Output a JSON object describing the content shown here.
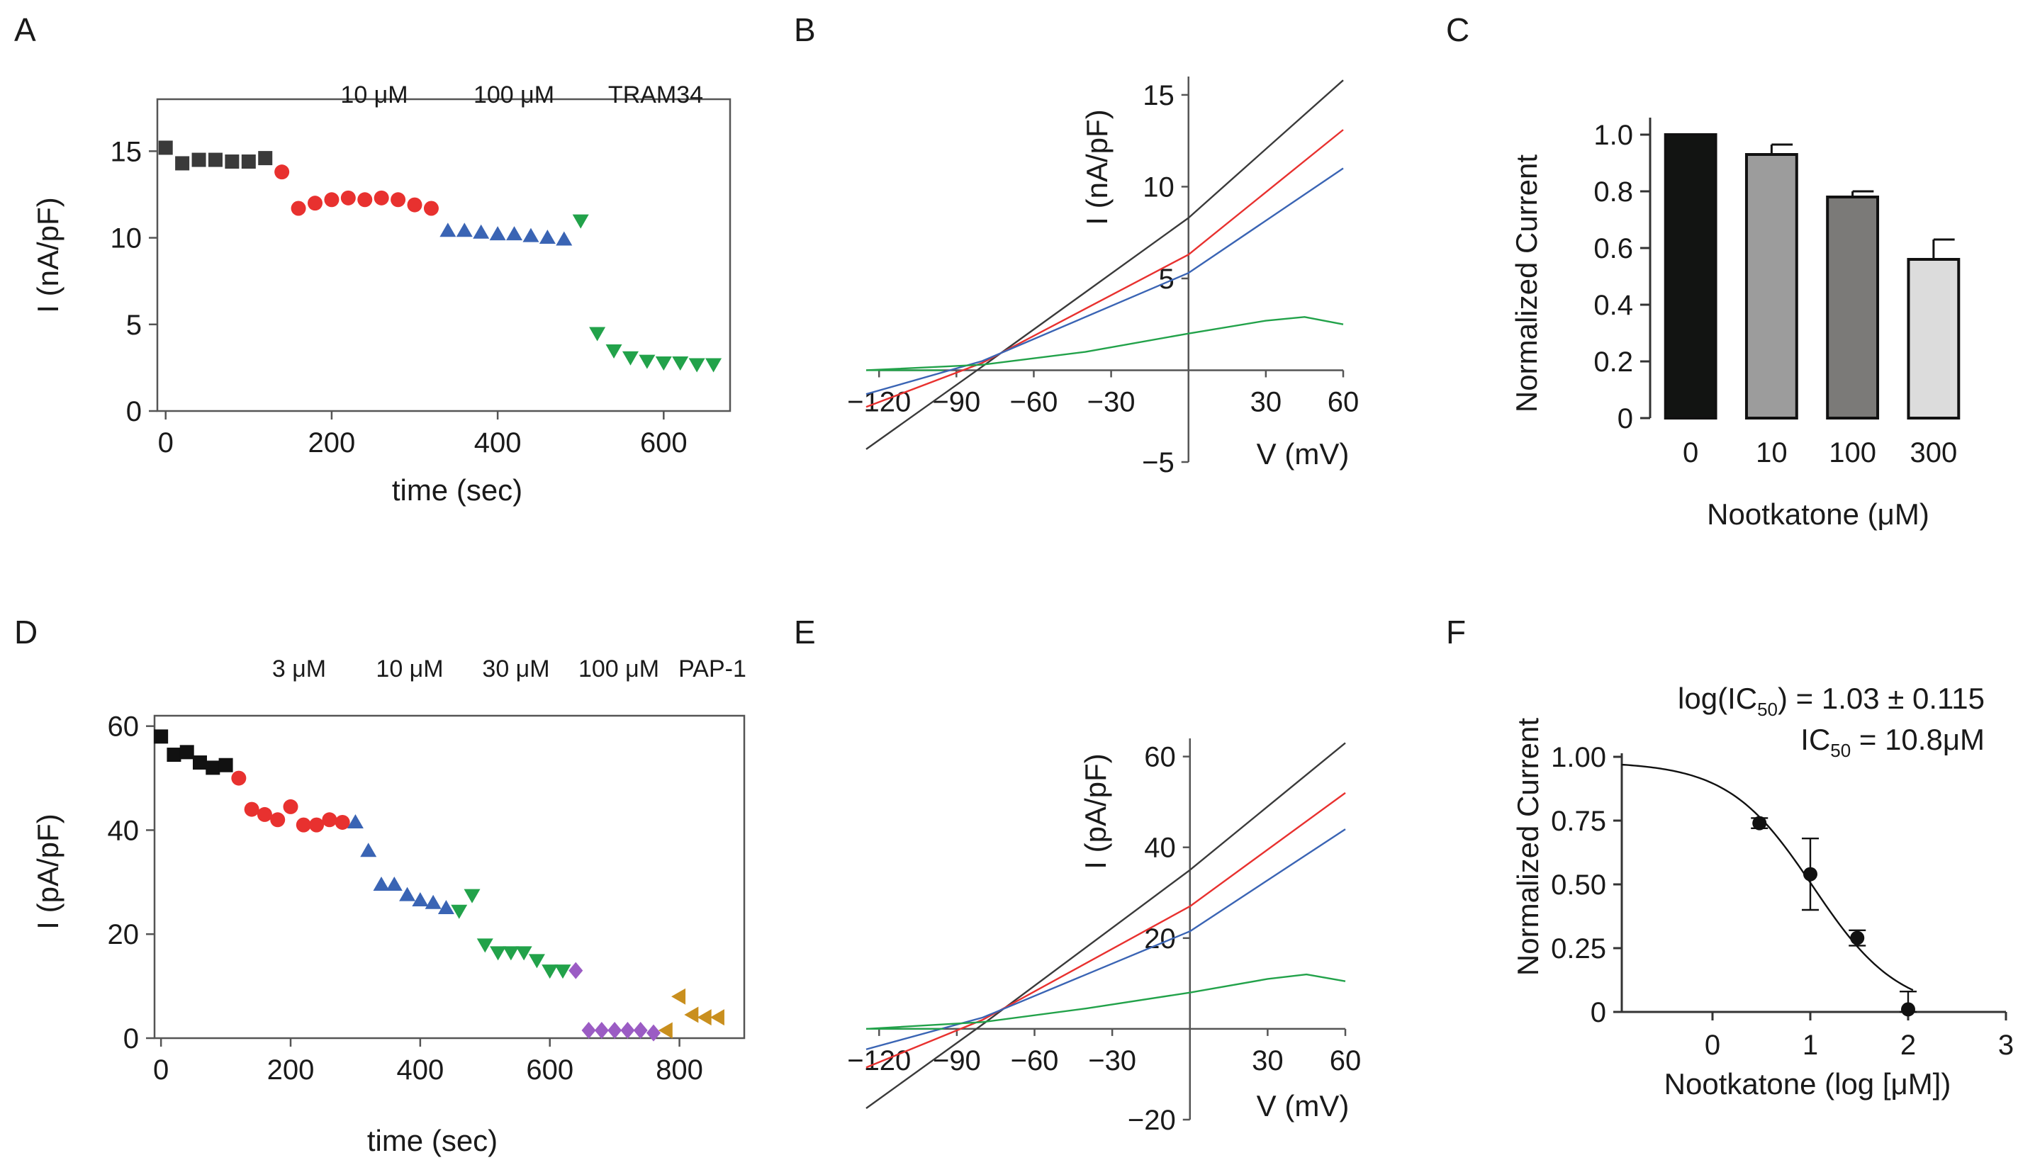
{
  "colors": {
    "control": "#3a3a3a",
    "red": "#e8312f",
    "blue": "#3a64b4",
    "green": "#22a24a",
    "purple": "#9b5cc4",
    "orange": "#d59a22",
    "label_red": "#e8312f",
    "label_blue": "#2b2b9a",
    "label_green": "#1f9e4a",
    "label_purple": "#7a2fa6",
    "label_orange": "#e39b2e"
  },
  "chart_data": [
    {
      "id": "A",
      "panel_label": "A",
      "type": "scatter",
      "xlabel": "time (sec)",
      "ylabel": "I (nA/pF)",
      "xlim": [
        -10,
        680
      ],
      "ylim": [
        0,
        18
      ],
      "xticks": [
        "0",
        "200",
        "400",
        "600"
      ],
      "xtick_values": [
        0,
        200,
        400,
        600
      ],
      "yticks": [
        "0",
        "5",
        "10",
        "15"
      ],
      "ytick_values": [
        0,
        5,
        10,
        15
      ],
      "conditions": [
        {
          "label": "10 μM",
          "color": "#e8312f"
        },
        {
          "label": "100 μM",
          "color": "#2b2b9a"
        },
        {
          "label": "TRAM34",
          "color": "#1f9e4a"
        }
      ],
      "series": [
        {
          "marker": "square",
          "color": "#3a3a3a",
          "x": [
            0,
            20,
            40,
            60,
            80,
            100,
            120
          ],
          "y": [
            15.2,
            14.3,
            14.5,
            14.5,
            14.4,
            14.4,
            14.6
          ]
        },
        {
          "marker": "circle",
          "color": "#e8312f",
          "x": [
            140,
            160,
            180,
            200,
            220,
            240,
            260,
            280,
            300,
            320
          ],
          "y": [
            13.8,
            11.7,
            12.0,
            12.2,
            12.3,
            12.2,
            12.3,
            12.2,
            11.9,
            11.7
          ]
        },
        {
          "marker": "triangle-up",
          "color": "#3a64b4",
          "x": [
            340,
            360,
            380,
            400,
            420,
            440,
            460,
            480
          ],
          "y": [
            10.4,
            10.4,
            10.3,
            10.2,
            10.2,
            10.1,
            10.0,
            9.9
          ]
        },
        {
          "marker": "triangle-down",
          "color": "#22a24a",
          "x": [
            500,
            520,
            540,
            560,
            580,
            600,
            620,
            640,
            660
          ],
          "y": [
            11.0,
            4.5,
            3.5,
            3.1,
            2.9,
            2.8,
            2.8,
            2.7,
            2.7
          ]
        }
      ]
    },
    {
      "id": "B",
      "panel_label": "B",
      "type": "line",
      "xlabel": "V (mV)",
      "ylabel": "I (nA/pF)",
      "xlim": [
        -125,
        60
      ],
      "ylim": [
        -5,
        16
      ],
      "xticks": [
        "−120",
        "−90",
        "−60",
        "−30",
        "30",
        "60"
      ],
      "xtick_values": [
        -120,
        -90,
        -60,
        -30,
        30,
        60
      ],
      "yticks": [
        "−5",
        "5",
        "10",
        "15"
      ],
      "ytick_values": [
        -5,
        5,
        10,
        15
      ],
      "series": [
        {
          "color": "#3a3a3a",
          "x": [
            -125,
            -80,
            0,
            60
          ],
          "y": [
            -4.3,
            0.2,
            8.3,
            15.8
          ]
        },
        {
          "color": "#e8312f",
          "x": [
            -125,
            -80,
            0,
            60
          ],
          "y": [
            -2.0,
            0.4,
            6.3,
            13.1
          ]
        },
        {
          "color": "#3a64b4",
          "x": [
            -125,
            -80,
            0,
            60
          ],
          "y": [
            -1.3,
            0.5,
            5.3,
            11.0
          ]
        },
        {
          "color": "#22a24a",
          "x": [
            -125,
            -80,
            -40,
            0,
            30,
            45,
            60
          ],
          "y": [
            0.0,
            0.3,
            1.0,
            2.0,
            2.7,
            2.9,
            2.5
          ]
        }
      ]
    },
    {
      "id": "C",
      "panel_label": "C",
      "type": "bar",
      "xlabel": "Nootkatone (μM)",
      "ylabel": "Normalized Current",
      "ylim": [
        0,
        1.1
      ],
      "yticks": [
        "0",
        "0.2",
        "0.4",
        "0.6",
        "0.8",
        "1.0"
      ],
      "ytick_values": [
        0,
        0.2,
        0.4,
        0.6,
        0.8,
        1.0
      ],
      "categories": [
        "0",
        "10",
        "100",
        "300"
      ],
      "values": [
        1.0,
        0.93,
        0.78,
        0.56
      ],
      "errors": [
        0.0,
        0.035,
        0.02,
        0.07
      ],
      "bar_colors": [
        "#121412",
        "#9c9c9c",
        "#7b7a78",
        "#dcdcdc"
      ]
    },
    {
      "id": "D",
      "panel_label": "D",
      "type": "scatter",
      "xlabel": "time (sec)",
      "ylabel": "I (pA/pF)",
      "xlim": [
        -10,
        900
      ],
      "ylim": [
        0,
        62
      ],
      "xticks": [
        "0",
        "200",
        "400",
        "600",
        "800"
      ],
      "xtick_values": [
        0,
        200,
        400,
        600,
        800
      ],
      "yticks": [
        "0",
        "20",
        "40",
        "60"
      ],
      "ytick_values": [
        0,
        20,
        40,
        60
      ],
      "conditions": [
        {
          "label": "3 μM",
          "color": "#e8312f"
        },
        {
          "label": "10 μM",
          "color": "#2b2b9a"
        },
        {
          "label": "30 μM",
          "color": "#1f9e4a"
        },
        {
          "label": "100 μM",
          "color": "#7a2fa6"
        },
        {
          "label": "PAP-1",
          "color": "#e39b2e"
        }
      ],
      "series": [
        {
          "marker": "square",
          "color": "#111111",
          "x": [
            0,
            20,
            40,
            60,
            80,
            100
          ],
          "y": [
            58,
            54.5,
            55,
            53,
            52,
            52.5
          ]
        },
        {
          "marker": "circle",
          "color": "#e8312f",
          "x": [
            120,
            140,
            160,
            180,
            200,
            220,
            240,
            260,
            280
          ],
          "y": [
            50,
            44,
            43,
            42,
            44.5,
            41,
            41,
            42,
            41.5
          ]
        },
        {
          "marker": "triangle-up",
          "color": "#3a64b4",
          "x": [
            300,
            320,
            340,
            360,
            380,
            400,
            420,
            440
          ],
          "y": [
            41.5,
            36,
            29.5,
            29.5,
            27.5,
            26.5,
            26,
            25
          ]
        },
        {
          "marker": "triangle-down",
          "color": "#22a24a",
          "x": [
            460,
            480,
            500,
            520,
            540,
            560,
            580,
            600,
            620
          ],
          "y": [
            24.5,
            27.5,
            18,
            16.5,
            16.5,
            16.5,
            15,
            13,
            13
          ]
        },
        {
          "marker": "diamond",
          "color": "#9b5cc4",
          "x": [
            640,
            660,
            680,
            700,
            720,
            740,
            760
          ],
          "y": [
            13,
            1.5,
            1.5,
            1.5,
            1.5,
            1.5,
            1.0
          ]
        },
        {
          "marker": "triangle-left",
          "color": "#c98f1e",
          "x": [
            780,
            800,
            820,
            840,
            860
          ],
          "y": [
            1.5,
            8.0,
            4.5,
            4.0,
            4.0
          ]
        }
      ]
    },
    {
      "id": "E",
      "panel_label": "E",
      "type": "line",
      "xlabel": "V (mV)",
      "ylabel": "I (pA/pF)",
      "xlim": [
        -125,
        60
      ],
      "ylim": [
        -20,
        64
      ],
      "xticks": [
        "−120",
        "−90",
        "−60",
        "−30",
        "30",
        "60"
      ],
      "xtick_values": [
        -120,
        -90,
        -60,
        -30,
        30,
        60
      ],
      "yticks": [
        "−20",
        "20",
        "40",
        "60"
      ],
      "ytick_values": [
        -20,
        20,
        40,
        60
      ],
      "series": [
        {
          "color": "#3a3a3a",
          "x": [
            -125,
            -80,
            0,
            60
          ],
          "y": [
            -17.5,
            1.0,
            35.0,
            63.0
          ]
        },
        {
          "color": "#e8312f",
          "x": [
            -125,
            -80,
            0,
            60
          ],
          "y": [
            -8.5,
            2.0,
            27.0,
            52.0
          ]
        },
        {
          "color": "#3a64b4",
          "x": [
            -125,
            -80,
            0,
            60
          ],
          "y": [
            -4.5,
            2.5,
            21.5,
            44.0
          ]
        },
        {
          "color": "#22a24a",
          "x": [
            -125,
            -80,
            -40,
            0,
            30,
            45,
            60
          ],
          "y": [
            0.0,
            1.5,
            4.5,
            8.0,
            11.0,
            12.0,
            10.5
          ]
        }
      ]
    },
    {
      "id": "F",
      "panel_label": "F",
      "type": "scatter",
      "xlabel": "Nootkatone (log [μM])",
      "ylabel": "Normalized Current",
      "xlim": [
        -1,
        3
      ],
      "ylim": [
        0,
        1.0
      ],
      "xticks": [
        "0",
        "1",
        "2",
        "3"
      ],
      "xtick_values": [
        0,
        1,
        2,
        3
      ],
      "yticks": [
        "0",
        "0.25",
        "0.50",
        "0.75",
        "1.00"
      ],
      "ytick_values": [
        0,
        0.25,
        0.5,
        0.75,
        1.0
      ],
      "points": {
        "x": [
          0.48,
          1.0,
          1.48,
          2.0
        ],
        "y": [
          0.74,
          0.54,
          0.29,
          0.01
        ],
        "errors": [
          0.02,
          0.14,
          0.03,
          0.07
        ]
      },
      "fit": {
        "top": 0.98,
        "bottom": 0.0,
        "log_ic50": 1.03,
        "hill": -1.0
      },
      "annotation_line1": {
        "pre": "log(IC",
        "sub": "50",
        "post": ") = 1.03 ± 0.115"
      },
      "annotation_line2": {
        "pre": "IC",
        "sub": "50",
        "post": " = 10.8μM"
      }
    }
  ]
}
